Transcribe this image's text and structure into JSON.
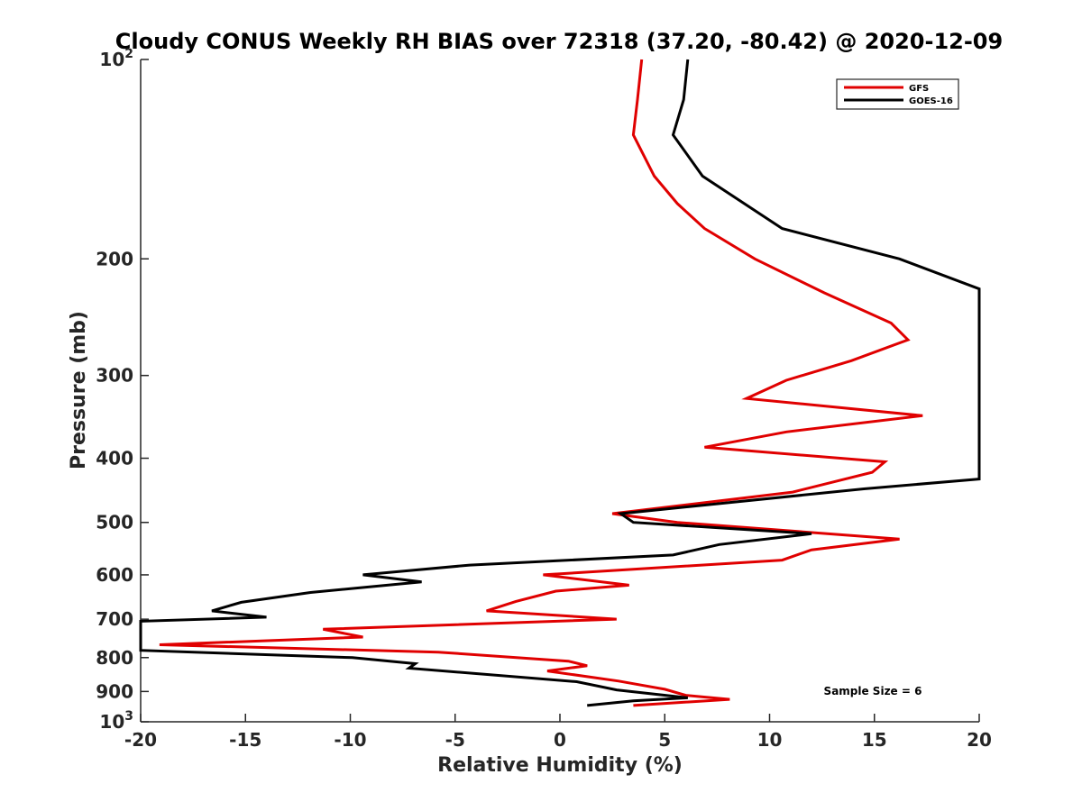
{
  "chart_data": {
    "type": "line",
    "title": "Cloudy CONUS Weekly RH BIAS over 72318 (37.20, -80.42) @ 2020-12-09",
    "xlabel": "Relative Humidity (%)",
    "ylabel": "Pressure (mb)",
    "xlim": [
      -20,
      20
    ],
    "ylim": [
      100,
      1000
    ],
    "yscale": "log",
    "y_reversed": true,
    "xticks": [
      "-20",
      "-15",
      "-10",
      "-5",
      "0",
      "5",
      "10",
      "15",
      "20"
    ],
    "yticks": [
      {
        "value": 100,
        "label": "10",
        "sup": "2"
      },
      {
        "value": 200,
        "label": "200",
        "sup": ""
      },
      {
        "value": 300,
        "label": "300",
        "sup": ""
      },
      {
        "value": 400,
        "label": "400",
        "sup": ""
      },
      {
        "value": 500,
        "label": "500",
        "sup": ""
      },
      {
        "value": 600,
        "label": "600",
        "sup": ""
      },
      {
        "value": 700,
        "label": "700",
        "sup": ""
      },
      {
        "value": 800,
        "label": "800",
        "sup": ""
      },
      {
        "value": 900,
        "label": "900",
        "sup": ""
      },
      {
        "value": 1000,
        "label": "10",
        "sup": "3"
      }
    ],
    "legend_position": "top-right",
    "annotation": "Sample Size = 6",
    "series": [
      {
        "name": "GFS",
        "color": "#e00000",
        "points": [
          [
            3.9,
            100
          ],
          [
            3.7,
            115
          ],
          [
            3.5,
            130
          ],
          [
            4.5,
            150
          ],
          [
            5.6,
            165
          ],
          [
            6.9,
            180
          ],
          [
            9.3,
            200
          ],
          [
            12.6,
            225
          ],
          [
            15.8,
            250
          ],
          [
            16.6,
            265
          ],
          [
            13.9,
            285
          ],
          [
            10.8,
            305
          ],
          [
            8.9,
            325
          ],
          [
            17.3,
            345
          ],
          [
            10.8,
            365
          ],
          [
            6.9,
            385
          ],
          [
            15.5,
            405
          ],
          [
            14.9,
            420
          ],
          [
            11.1,
            450
          ],
          [
            2.5,
            485
          ],
          [
            5.6,
            500
          ],
          [
            16.2,
            530
          ],
          [
            12.0,
            550
          ],
          [
            10.6,
            570
          ],
          [
            -0.8,
            600
          ],
          [
            3.3,
            622
          ],
          [
            -0.2,
            635
          ],
          [
            -2.1,
            658
          ],
          [
            -3.5,
            680
          ],
          [
            2.7,
            700
          ],
          [
            -11.3,
            725
          ],
          [
            -9.4,
            745
          ],
          [
            -19.1,
            765
          ],
          [
            -5.8,
            785
          ],
          [
            0.4,
            810
          ],
          [
            1.3,
            823
          ],
          [
            -0.6,
            838
          ],
          [
            2.8,
            868
          ],
          [
            5.0,
            893
          ],
          [
            6.0,
            912
          ],
          [
            8.1,
            925
          ],
          [
            3.5,
            945
          ]
        ]
      },
      {
        "name": "GOES-16",
        "color": "#000000",
        "points": [
          [
            6.1,
            100
          ],
          [
            5.9,
            115
          ],
          [
            5.4,
            130
          ],
          [
            6.8,
            150
          ],
          [
            10.6,
            180
          ],
          [
            16.2,
            200
          ],
          [
            20.0,
            222
          ],
          [
            20.0,
            430
          ],
          [
            14.5,
            445
          ],
          [
            2.9,
            485
          ],
          [
            3.5,
            500
          ],
          [
            12.0,
            520
          ],
          [
            7.6,
            540
          ],
          [
            5.4,
            560
          ],
          [
            -4.3,
            580
          ],
          [
            -9.4,
            600
          ],
          [
            -6.6,
            615
          ],
          [
            -11.9,
            638
          ],
          [
            -15.2,
            660
          ],
          [
            -16.6,
            680
          ],
          [
            -14.0,
            695
          ],
          [
            -20.0,
            705
          ],
          [
            -20.0,
            780
          ],
          [
            -9.9,
            800
          ],
          [
            -6.9,
            817
          ],
          [
            -7.2,
            830
          ],
          [
            0.8,
            870
          ],
          [
            2.7,
            895
          ],
          [
            6.1,
            920
          ],
          [
            3.5,
            930
          ],
          [
            1.3,
            945
          ]
        ]
      }
    ]
  }
}
